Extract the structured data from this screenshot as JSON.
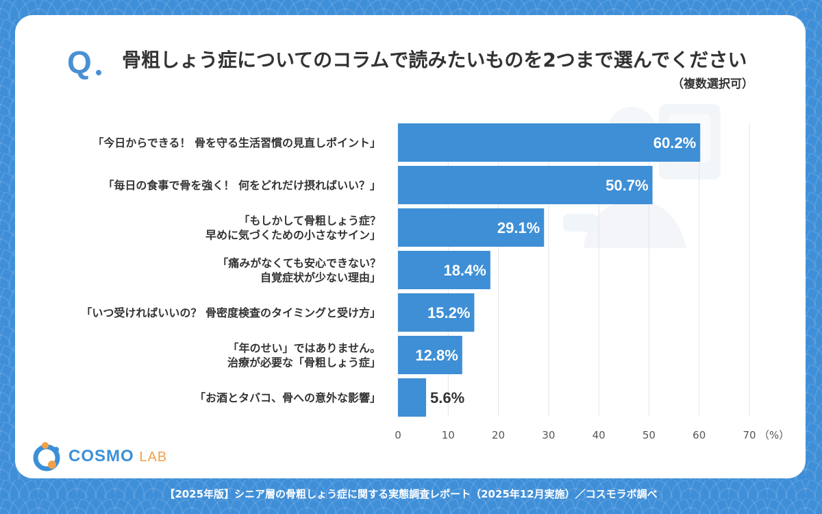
{
  "header": {
    "q_label": "Q"
  },
  "logo": {
    "cosmo": "COSMO",
    "lab": "LAB"
  },
  "footer": {
    "text": "【2025年版】シニア層の骨粗しょう症に関する実態調査レポート（2025年12月実施）／コスモラボ調べ"
  },
  "colors": {
    "bar": "#3e8fd6",
    "grid": "#e3e3e3",
    "label": "#333333",
    "value_inside": "#ffffff",
    "value_outside": "#333333",
    "background": "#3f8fd8"
  },
  "chart_data": {
    "type": "bar",
    "orientation": "horizontal",
    "title": "骨粗しょう症についてのコラムで読みたいものを2つまで選んでください",
    "subtitle": "（複数選択可）",
    "categories": [
      [
        "「今日からできる！ 骨を守る生活習慣の見直しポイント」"
      ],
      [
        "「毎日の食事で骨を強く！ 何をどれだけ摂ればいい？」"
      ],
      [
        "「もしかして骨粗しょう症？",
        "早めに気づくための小さなサイン」"
      ],
      [
        "「痛みがなくても安心できない？",
        "自覚症状が少ない理由」"
      ],
      [
        "「いつ受ければいいの？ 骨密度検査のタイミングと受け方」"
      ],
      [
        "「年のせい」ではありません。",
        "治療が必要な「骨粗しょう症」"
      ],
      [
        "「お酒とタバコ、骨への意外な影響」"
      ]
    ],
    "values": [
      60.2,
      50.7,
      29.1,
      18.4,
      15.2,
      12.8,
      5.6
    ],
    "value_labels": [
      "60.2%",
      "50.7%",
      "29.1%",
      "18.4%",
      "15.2%",
      "12.8%",
      "5.6%"
    ],
    "xlim": [
      0,
      70
    ],
    "xticks": [
      0,
      10,
      20,
      30,
      40,
      50,
      60,
      70
    ],
    "x_unit_label": "（%）",
    "grid": true
  }
}
